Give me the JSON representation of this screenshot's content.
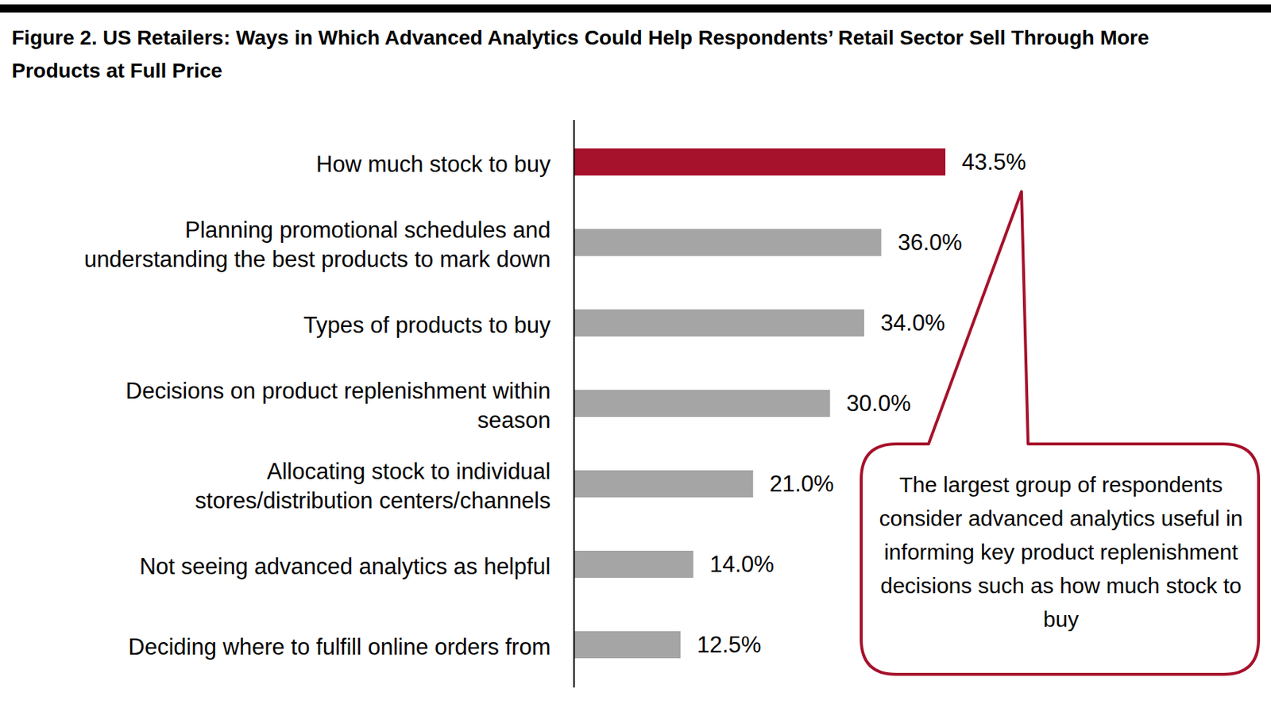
{
  "chart_data": {
    "type": "bar",
    "title": "Figure 2. US Retailers: Ways in Which Advanced Analytics Could Help Respondents’ Retail Sector Sell Through More Products at Full Price",
    "orientation": "horizontal",
    "categories": [
      "How much stock to buy",
      "Planning promotional schedules and understanding the best products to mark down",
      "Types of products to buy",
      "Decisions on product replenishment within season",
      "Allocating stock to individual stores/distribution centers/channels",
      "Not seeing advanced analytics as helpful",
      "Deciding where to fulfill online orders from"
    ],
    "values": [
      43.5,
      36.0,
      34.0,
      30.0,
      21.0,
      14.0,
      12.5
    ],
    "value_labels": [
      "43.5%",
      "36.0%",
      "34.0%",
      "30.0%",
      "21.0%",
      "14.0%",
      "12.5%"
    ],
    "colors": [
      "#a6112b",
      "#a5a5a5",
      "#a5a5a5",
      "#a5a5a5",
      "#a5a5a5",
      "#a5a5a5",
      "#a5a5a5"
    ],
    "xlim": [
      0,
      43.5
    ],
    "xticks": [],
    "grid": false,
    "data_labels": true,
    "tick_labels": "y",
    "annotations": [
      "The largest group of respondents consider advanced analytics useful in informing key product replenishment decisions such as how much stock to buy"
    ]
  }
}
